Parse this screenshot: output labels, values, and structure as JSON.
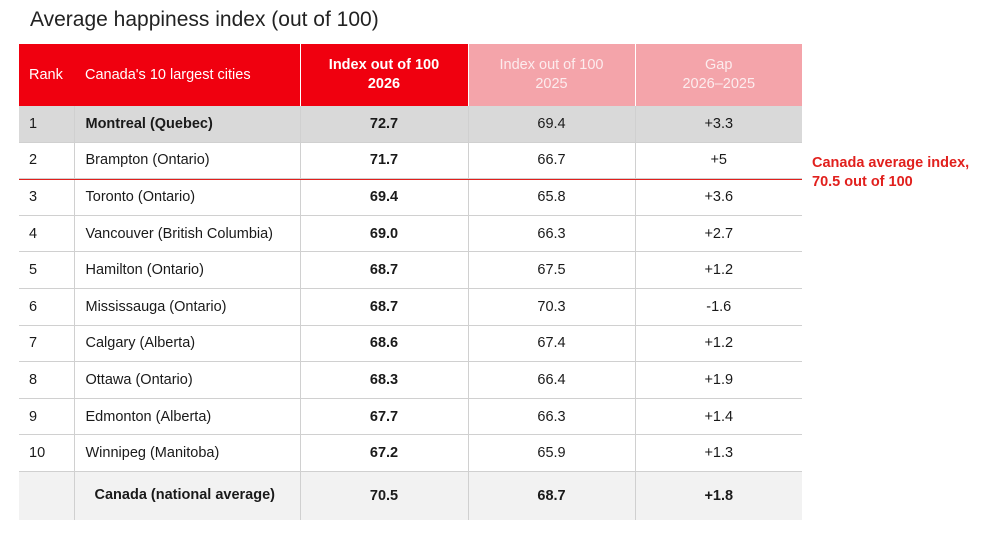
{
  "title": "Average happiness index (out of 100)",
  "chart_data": {
    "type": "table",
    "columns": [
      {
        "label": "Rank"
      },
      {
        "label": "Canada's 10 largest cities"
      },
      {
        "label": "Index out of 100",
        "sub": "2026"
      },
      {
        "label": "Index out of 100",
        "sub": "2025"
      },
      {
        "label": "Gap",
        "sub": "2026–2025"
      }
    ],
    "rows": [
      {
        "rank": "1",
        "city": "Montreal (Quebec)",
        "i2026": "72.7",
        "i2025": "69.4",
        "gap": "+3.3"
      },
      {
        "rank": "2",
        "city": "Brampton (Ontario)",
        "i2026": "71.7",
        "i2025": "66.7",
        "gap": "+5"
      },
      {
        "rank": "3",
        "city": "Toronto (Ontario)",
        "i2026": "69.4",
        "i2025": "65.8",
        "gap": "+3.6"
      },
      {
        "rank": "4",
        "city": "Vancouver (British Columbia)",
        "i2026": "69.0",
        "i2025": "66.3",
        "gap": "+2.7"
      },
      {
        "rank": "5",
        "city": "Hamilton (Ontario)",
        "i2026": "68.7",
        "i2025": "67.5",
        "gap": "+1.2"
      },
      {
        "rank": "6",
        "city": "Mississauga (Ontario)",
        "i2026": "68.7",
        "i2025": "70.3",
        "gap": "-1.6"
      },
      {
        "rank": "7",
        "city": "Calgary (Alberta)",
        "i2026": "68.6",
        "i2025": "67.4",
        "gap": "+1.2"
      },
      {
        "rank": "8",
        "city": "Ottawa (Ontario)",
        "i2026": "68.3",
        "i2025": "66.4",
        "gap": "+1.9"
      },
      {
        "rank": "9",
        "city": "Edmonton (Alberta)",
        "i2026": "67.7",
        "i2025": "66.3",
        "gap": "+1.4"
      },
      {
        "rank": "10",
        "city": "Winnipeg (Manitoba)",
        "i2026": "67.2",
        "i2025": "65.9",
        "gap": "+1.3"
      }
    ],
    "total": {
      "city": "Canada (national average)",
      "i2026": "70.5",
      "i2025": "68.7",
      "gap": "+1.8"
    },
    "annotation": {
      "text_line1": "Canada average index,",
      "text_line2": "70.5 out of 100",
      "value": 70.5
    },
    "colors": {
      "header_2026": "#f0000f",
      "header_faded": "#f4a4aa",
      "annotation": "#e1201d",
      "highlight_row": "#d9d9d9"
    }
  }
}
